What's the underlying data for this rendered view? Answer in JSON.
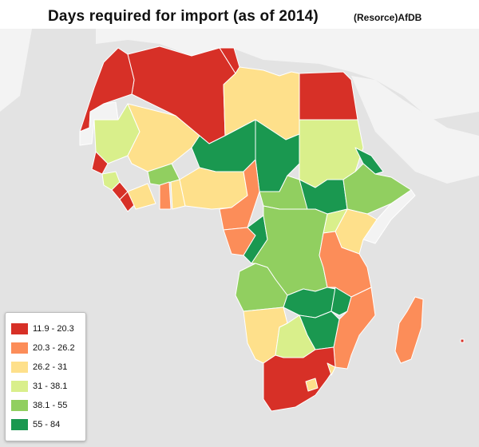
{
  "title": "Days required for import (as of 2014)",
  "source": "(Resorce)AfDB",
  "legend": [
    {
      "label": "11.9 - 20.3",
      "color": "#d73027"
    },
    {
      "label": "20.3 - 26.2",
      "color": "#fc8d59"
    },
    {
      "label": "26.2 - 31",
      "color": "#fee08b"
    },
    {
      "label": "31 - 38.1",
      "color": "#d9ef8b"
    },
    {
      "label": "38.1 - 55",
      "color": "#91cf60"
    },
    {
      "label": "55 - 84",
      "color": "#1a9850"
    }
  ],
  "colors": {
    "sea": "#e3e3e3",
    "land_other": "#f3f3f3",
    "border": "#ffffff"
  }
}
